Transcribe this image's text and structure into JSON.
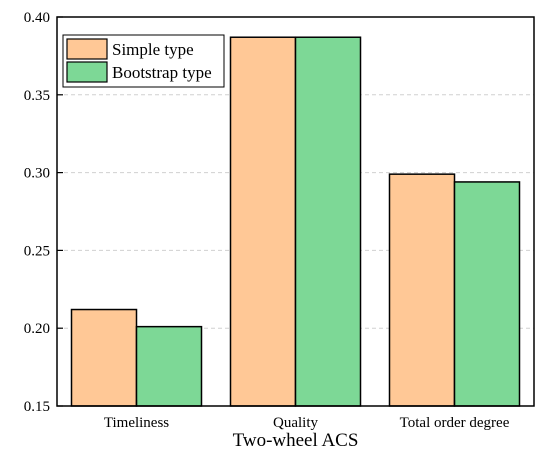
{
  "chart_data": {
    "type": "bar",
    "xlabel": "Two-wheel ACS",
    "ylabel": "",
    "ylim": [
      0.15,
      0.4
    ],
    "yticks": [
      "0.15",
      "0.20",
      "0.25",
      "0.30",
      "0.35",
      "0.40"
    ],
    "categories": [
      "Timeliness",
      "Quality",
      "Total order degree"
    ],
    "grid": true,
    "legend_position": "top-left",
    "series": [
      {
        "name": "Simple type",
        "color": "#FFC896",
        "values": [
          0.212,
          0.387,
          0.299
        ]
      },
      {
        "name": "Bootstrap type",
        "color": "#7DD896",
        "values": [
          0.201,
          0.387,
          0.294
        ]
      }
    ]
  }
}
